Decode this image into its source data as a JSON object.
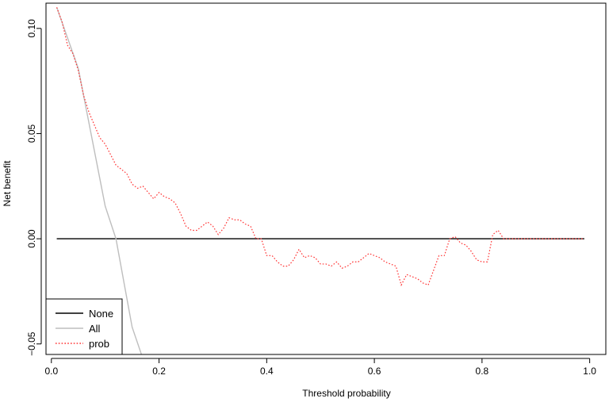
{
  "chart_data": {
    "type": "line",
    "title": "",
    "xlabel": "Threshold probability",
    "ylabel": "Net benefit",
    "xlim": [
      -0.01,
      1.03
    ],
    "ylim": [
      -0.055,
      0.112
    ],
    "xticks": [
      0.0,
      0.2,
      0.4,
      0.6,
      0.8,
      1.0
    ],
    "xtick_labels": [
      "0.0",
      "0.2",
      "0.4",
      "0.6",
      "0.8",
      "1.0"
    ],
    "yticks": [
      -0.05,
      0.0,
      0.05,
      0.1
    ],
    "ytick_labels": [
      "−0.05",
      "0.00",
      "0.05",
      "0.10"
    ],
    "grid": false,
    "legend": {
      "position": "bottom-left",
      "entries": [
        "None",
        "All",
        "prob"
      ]
    },
    "series": [
      {
        "name": "None",
        "color": "#000000",
        "style": "solid",
        "x": [
          0.01,
          0.99
        ],
        "y": [
          0.0,
          0.0
        ]
      },
      {
        "name": "All",
        "color": "#bebebe",
        "style": "solid",
        "x": [
          0.01,
          0.05,
          0.1,
          0.12,
          0.15,
          0.17
        ],
        "y": [
          0.11,
          0.081,
          0.0155,
          0.0,
          -0.042,
          -0.057
        ]
      },
      {
        "name": "prob",
        "color": "#ff3333",
        "style": "dotted",
        "x": [
          0.01,
          0.02,
          0.03,
          0.04,
          0.05,
          0.06,
          0.07,
          0.08,
          0.09,
          0.1,
          0.11,
          0.12,
          0.13,
          0.14,
          0.15,
          0.16,
          0.17,
          0.18,
          0.19,
          0.2,
          0.21,
          0.22,
          0.23,
          0.24,
          0.25,
          0.26,
          0.27,
          0.28,
          0.29,
          0.3,
          0.31,
          0.32,
          0.33,
          0.34,
          0.35,
          0.36,
          0.37,
          0.38,
          0.39,
          0.4,
          0.41,
          0.42,
          0.43,
          0.44,
          0.45,
          0.46,
          0.47,
          0.48,
          0.49,
          0.5,
          0.51,
          0.52,
          0.53,
          0.54,
          0.55,
          0.56,
          0.57,
          0.58,
          0.59,
          0.6,
          0.61,
          0.62,
          0.63,
          0.64,
          0.65,
          0.66,
          0.67,
          0.68,
          0.69,
          0.7,
          0.71,
          0.72,
          0.73,
          0.74,
          0.75,
          0.76,
          0.77,
          0.78,
          0.79,
          0.8,
          0.81,
          0.82,
          0.83,
          0.84,
          0.86,
          0.88,
          0.9,
          0.92,
          0.94,
          0.96,
          0.98,
          0.99
        ],
        "y": [
          0.11,
          0.103,
          0.092,
          0.088,
          0.08,
          0.068,
          0.06,
          0.054,
          0.048,
          0.045,
          0.04,
          0.035,
          0.033,
          0.031,
          0.026,
          0.024,
          0.025,
          0.022,
          0.019,
          0.022,
          0.02,
          0.019,
          0.017,
          0.012,
          0.006,
          0.004,
          0.004,
          0.006,
          0.008,
          0.006,
          0.002,
          0.005,
          0.01,
          0.009,
          0.009,
          0.007,
          0.006,
          0.0,
          0.0,
          -0.008,
          -0.008,
          -0.011,
          -0.013,
          -0.013,
          -0.01,
          -0.005,
          -0.009,
          -0.008,
          -0.009,
          -0.012,
          -0.012,
          -0.013,
          -0.011,
          -0.014,
          -0.013,
          -0.011,
          -0.011,
          -0.009,
          -0.007,
          -0.008,
          -0.009,
          -0.011,
          -0.012,
          -0.013,
          -0.022,
          -0.017,
          -0.018,
          -0.019,
          -0.021,
          -0.022,
          -0.015,
          -0.008,
          -0.008,
          0.0,
          0.001,
          -0.002,
          -0.003,
          -0.006,
          -0.01,
          -0.011,
          -0.011,
          0.002,
          0.004,
          0.0,
          0.0,
          0.0,
          0.0,
          0.0,
          0.0,
          0.0,
          0.0,
          0.0
        ]
      }
    ]
  }
}
